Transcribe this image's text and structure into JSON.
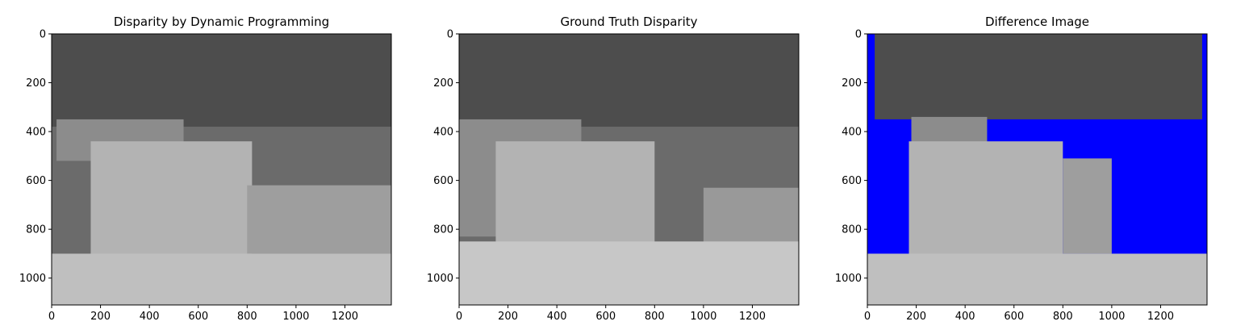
{
  "chart_data": [
    {
      "type": "heatmap",
      "title": "Disparity by Dynamic Programming",
      "xlim": [
        0,
        1390
      ],
      "ylim": [
        1110,
        0
      ],
      "xticks": [
        0,
        200,
        400,
        600,
        800,
        1000,
        1200
      ],
      "yticks": [
        0,
        200,
        400,
        600,
        800,
        1000
      ],
      "colormap": "grayscale",
      "regions": [
        {
          "name": "back-wall",
          "x": [
            0,
            1390
          ],
          "y": [
            0,
            380
          ],
          "gray": 0.3
        },
        {
          "name": "left-box",
          "x": [
            20,
            540
          ],
          "y": [
            350,
            520
          ],
          "gray": 0.55
        },
        {
          "name": "middle-board",
          "x": [
            160,
            820
          ],
          "y": [
            440,
            1010
          ],
          "gray": 0.7
        },
        {
          "name": "right-box",
          "x": [
            800,
            1390
          ],
          "y": [
            620,
            900
          ],
          "gray": 0.62
        },
        {
          "name": "floor",
          "x": [
            0,
            1390
          ],
          "y": [
            900,
            1110
          ],
          "gray": 0.75
        }
      ]
    },
    {
      "type": "heatmap",
      "title": "Ground Truth Disparity",
      "xlim": [
        0,
        1390
      ],
      "ylim": [
        1110,
        0
      ],
      "xticks": [
        0,
        200,
        400,
        600,
        800,
        1000,
        1200
      ],
      "yticks": [
        0,
        200,
        400,
        600,
        800,
        1000
      ],
      "colormap": "grayscale",
      "regions": [
        {
          "name": "back-wall",
          "x": [
            0,
            1390
          ],
          "y": [
            0,
            380
          ],
          "gray": 0.3
        },
        {
          "name": "left-box",
          "x": [
            0,
            500
          ],
          "y": [
            350,
            830
          ],
          "gray": 0.55
        },
        {
          "name": "middle-board",
          "x": [
            150,
            800
          ],
          "y": [
            440,
            1000
          ],
          "gray": 0.7
        },
        {
          "name": "right-box",
          "x": [
            1000,
            1390
          ],
          "y": [
            630,
            880
          ],
          "gray": 0.6
        },
        {
          "name": "floor",
          "x": [
            0,
            1390
          ],
          "y": [
            850,
            1110
          ],
          "gray": 0.78
        }
      ]
    },
    {
      "type": "heatmap",
      "title": "Difference Image",
      "xlim": [
        0,
        1390
      ],
      "ylim": [
        1110,
        0
      ],
      "xticks": [
        0,
        200,
        400,
        600,
        800,
        1000,
        1200
      ],
      "yticks": [
        0,
        200,
        400,
        600,
        800,
        1000
      ],
      "colormap": "grayscale-with-blue-error",
      "error_color": "#0000ff",
      "regions": [
        {
          "name": "back-wall",
          "x": [
            30,
            1370
          ],
          "y": [
            0,
            350
          ],
          "gray": 0.3
        },
        {
          "name": "left-box",
          "x": [
            180,
            490
          ],
          "y": [
            340,
            470
          ],
          "gray": 0.55
        },
        {
          "name": "middle-board",
          "x": [
            170,
            800
          ],
          "y": [
            440,
            990
          ],
          "gray": 0.7
        },
        {
          "name": "right-box",
          "x": [
            800,
            1000
          ],
          "y": [
            510,
            900
          ],
          "gray": 0.62
        },
        {
          "name": "floor",
          "x": [
            0,
            1390
          ],
          "y": [
            900,
            1110
          ],
          "gray": 0.75
        }
      ]
    }
  ]
}
